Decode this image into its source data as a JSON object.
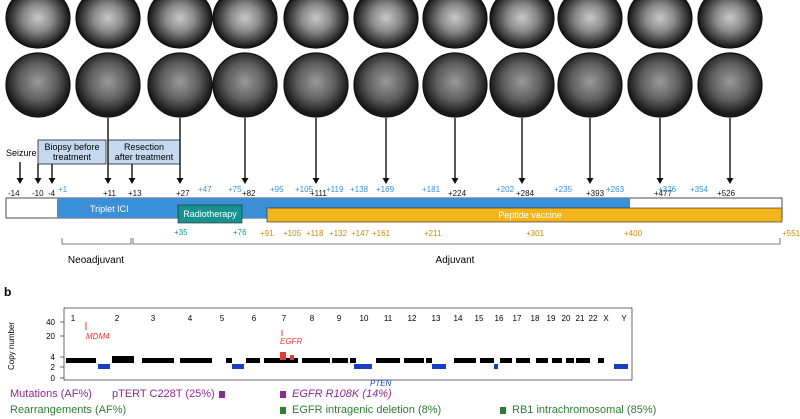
{
  "colors": {
    "blue_light": "#5aa9e6",
    "blue_mid": "#3a8fd6",
    "blue_dark": "#1f6fb2",
    "orange": "#f2b51d",
    "orange_text": "#c98b0a",
    "teal": "#17938f",
    "box_fill": "#c5d9f1",
    "red": "#e53935",
    "purple": "#8b2b8f",
    "green": "#2e7d32",
    "cn_black": "#000000",
    "cn_blue": "#1a3fc4"
  },
  "panel_a": {
    "events": {
      "seizure": "Seizure",
      "biopsy": "Biopsy before\ntreatment",
      "resection": "Resection\nafter treatment"
    },
    "phases": {
      "triplet": "Triplet ICI",
      "radiotherapy": "Radiotherapy",
      "vaccine": "Peptide vaccine"
    },
    "periods": {
      "neoadjuvant": "Neoadjuvant",
      "adjuvant": "Adjuvant"
    },
    "top_days_black": [
      "-14",
      "-10",
      "-4",
      "+11",
      "+13",
      "+27",
      "+82",
      "+111",
      "+224",
      "+284",
      "+393",
      "+477",
      "+526"
    ],
    "top_days_blue": [
      "+1",
      "+47",
      "+75",
      "+95",
      "+105",
      "+119",
      "+138",
      "+169",
      "+181",
      "+202",
      "+235",
      "+263",
      "+326",
      "+354"
    ],
    "bottom_days_teal": [
      "+35",
      "+76"
    ],
    "bottom_days_orange": [
      "+91",
      "+105",
      "+118",
      "+132",
      "+147",
      "+161",
      "+211",
      "+301",
      "+400",
      "+551"
    ]
  },
  "panel_b": {
    "label": "b",
    "ylabel": "Copy number",
    "yticks": [
      "0",
      "2",
      "4",
      "20",
      "40"
    ],
    "chromosomes": [
      "1",
      "2",
      "3",
      "4",
      "5",
      "6",
      "7",
      "8",
      "9",
      "10",
      "11",
      "12",
      "13",
      "14",
      "15",
      "16",
      "17",
      "18",
      "19",
      "20",
      "21",
      "22",
      "X",
      "Y"
    ],
    "genes": {
      "mdm4": "MDM4",
      "egfr": "EGFR",
      "pten": "PTEN"
    },
    "legend": {
      "mutations_label": "Mutations (AF%)",
      "tert": "pTERT C228T (25%)",
      "egfr_mut": "EGFR R108K (14%)",
      "rearrangements_label": "Rearrangements (AF%)",
      "egfr_del": "EGFR intragenic deletion (8%)",
      "rb1": "RB1 intrachromosomal (85%)"
    }
  }
}
